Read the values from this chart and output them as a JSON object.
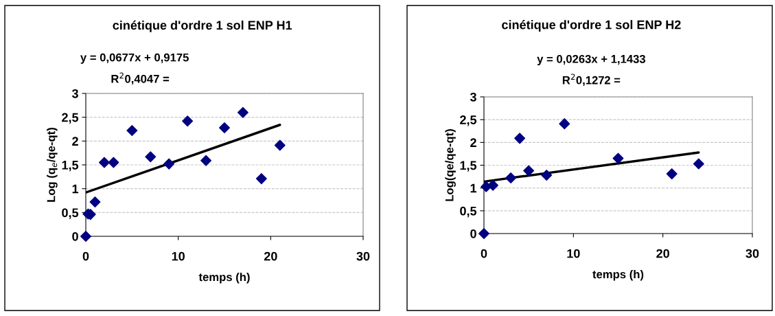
{
  "chart_data": [
    {
      "type": "scatter",
      "title": "cinétique d'ordre 1 sol ENP H1",
      "xlabel": "temps (h)",
      "ylabel": "Log (q$_{e}$/qe-qt)",
      "annotations": [
        "y = 0,0677x + 0,9175",
        "R$^{2}$0,4047 ="
      ],
      "series": [
        {
          "color": "#000080",
          "marker": "diamond",
          "x": [
            0,
            0.25,
            0.5,
            1,
            2,
            3,
            5,
            7,
            9,
            11,
            13,
            15,
            17,
            19,
            21
          ],
          "values": [
            0,
            0.47,
            0.46,
            0.72,
            1.55,
            1.55,
            2.22,
            1.67,
            1.52,
            2.42,
            1.59,
            2.28,
            2.6,
            1.21,
            1.91
          ]
        },
        {
          "type": "line",
          "color": "#000000",
          "marker": "none",
          "x": [
            0,
            21
          ],
          "values": [
            0.92,
            2.34
          ]
        }
      ],
      "xlim": [
        0,
        30
      ],
      "xticks": [
        0,
        10,
        20,
        30
      ],
      "ylim": [
        0,
        3
      ],
      "yticks": [
        {
          "value": 0,
          "label": "0"
        },
        {
          "value": 0.5,
          "label": "0,5"
        },
        {
          "value": 1,
          "label": "1"
        },
        {
          "value": 1.5,
          "label": "1,5"
        },
        {
          "value": 2,
          "label": "2"
        },
        {
          "value": 2.5,
          "label": "2,5"
        },
        {
          "value": 3,
          "label": "3"
        }
      ],
      "grid": "y",
      "legend": false
    },
    {
      "type": "scatter",
      "title": "cinétique d'ordre 1 sol ENP H2",
      "xlabel": "temps (h)",
      "ylabel": "Log(qe/qe-qt)",
      "annotations": [
        "y = 0,0263x + 1,1433",
        "R$^{2}$0,1272 ="
      ],
      "series": [
        {
          "color": "#000080",
          "marker": "diamond",
          "x": [
            0,
            0.25,
            1,
            3,
            4,
            5,
            7,
            9,
            15,
            21,
            24
          ],
          "values": [
            0,
            1.03,
            1.06,
            1.22,
            2.09,
            1.38,
            1.28,
            2.41,
            1.65,
            1.31,
            1.53
          ]
        },
        {
          "type": "line",
          "color": "#000000",
          "marker": "none",
          "x": [
            0,
            24
          ],
          "values": [
            1.14,
            1.78
          ]
        }
      ],
      "xlim": [
        0,
        30
      ],
      "xticks": [
        0,
        10,
        20,
        30
      ],
      "ylim": [
        0,
        3
      ],
      "yticks": [
        {
          "value": 0,
          "label": "0"
        },
        {
          "value": 0.5,
          "label": "0,5"
        },
        {
          "value": 1,
          "label": "1"
        },
        {
          "value": 1.5,
          "label": "1,5"
        },
        {
          "value": 2,
          "label": "2"
        },
        {
          "value": 2.5,
          "label": "2,5"
        },
        {
          "value": 3,
          "label": "3"
        }
      ],
      "grid": "y",
      "legend": false
    }
  ]
}
